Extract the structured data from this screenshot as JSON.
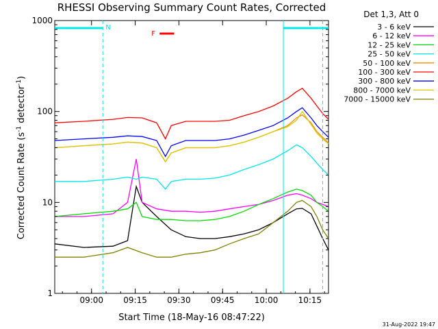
{
  "chart_data": {
    "type": "line",
    "title": "RHESSI Observing Summary Count Rates, Corrected",
    "xlabel": "Start Time (18-May-16 08:47:22)",
    "ylabel_prefix": "Corrected Count Rate (s",
    "ylabel_sup": "-1",
    "ylabel_mid": " detector",
    "ylabel_sup2": "-1",
    "ylabel_suffix": ")",
    "yscale": "log",
    "ylim": [
      1,
      1000
    ],
    "xlim_minutes": [
      0,
      94
    ],
    "x_ticks": [
      {
        "label": "09:00",
        "minutes": 12.63
      },
      {
        "label": "09:15",
        "minutes": 27.63
      },
      {
        "label": "09:30",
        "minutes": 42.63
      },
      {
        "label": "09:45",
        "minutes": 57.63
      },
      {
        "label": "10:00",
        "minutes": 72.63
      },
      {
        "label": "10:15",
        "minutes": 87.63
      }
    ],
    "y_ticks": [
      {
        "label": "1",
        "value": 1
      },
      {
        "label": "10",
        "value": 10
      },
      {
        "label": "100",
        "value": 100
      },
      {
        "label": "1000",
        "value": 1000
      }
    ],
    "legend_header": "Det 1,3, Att 0",
    "series": [
      {
        "name": "3 - 6 keV",
        "color": "#000000",
        "x": [
          0,
          10,
          20,
          25,
          28,
          30,
          35,
          40,
          45,
          50,
          55,
          60,
          65,
          70,
          75,
          80,
          83,
          85,
          88,
          90,
          92,
          94
        ],
        "y": [
          3.5,
          3.2,
          3.3,
          3.8,
          15,
          10,
          7,
          5,
          4.2,
          4.0,
          4.0,
          4.2,
          4.5,
          5,
          6,
          7.5,
          8.5,
          8.6,
          7.5,
          5.5,
          4.0,
          3.0
        ]
      },
      {
        "name": "6 - 12 keV",
        "color": "#ff00ff",
        "x": [
          0,
          10,
          20,
          25,
          28,
          30,
          35,
          40,
          45,
          50,
          55,
          60,
          65,
          70,
          75,
          80,
          83,
          85,
          88,
          90,
          92,
          94
        ],
        "y": [
          7,
          7,
          7.5,
          10,
          30,
          10,
          8.5,
          8,
          8,
          7.8,
          8,
          8.5,
          9,
          9.5,
          10.5,
          12,
          12.5,
          12,
          11,
          10,
          9.5,
          9
        ]
      },
      {
        "name": "12 - 25 keV",
        "color": "#00dd00",
        "x": [
          0,
          10,
          20,
          25,
          28,
          30,
          35,
          40,
          45,
          50,
          55,
          60,
          65,
          70,
          75,
          80,
          83,
          85,
          88,
          90,
          92,
          94
        ],
        "y": [
          7,
          7.5,
          8,
          8.5,
          10,
          7,
          6.5,
          6.5,
          6.3,
          6.3,
          6.5,
          7,
          8,
          9.5,
          11,
          13,
          14,
          13.5,
          12,
          10,
          9,
          8
        ]
      },
      {
        "name": "25 - 50 keV",
        "color": "#00e8e8",
        "x": [
          0,
          10,
          20,
          25,
          28,
          30,
          35,
          38,
          40,
          45,
          50,
          55,
          60,
          65,
          70,
          75,
          80,
          83,
          85,
          88,
          90,
          92,
          94
        ],
        "y": [
          17,
          17,
          18,
          19,
          18,
          19,
          18,
          14,
          17,
          18,
          18,
          18.5,
          20,
          23,
          26,
          30,
          37,
          43,
          40,
          32,
          27,
          23,
          20
        ]
      },
      {
        "name": "50 - 100 keV",
        "color": "#ff8800",
        "x": [
          0,
          10,
          20,
          25,
          30,
          35,
          38,
          40,
          45,
          50,
          55,
          60,
          65,
          70,
          75,
          80,
          83,
          85,
          88,
          90,
          92,
          94
        ],
        "y": [
          40,
          42,
          44,
          46,
          45,
          40,
          28,
          35,
          40,
          40,
          40,
          42,
          46,
          52,
          60,
          70,
          85,
          92,
          75,
          60,
          52,
          45
        ]
      },
      {
        "name": "100 - 300 keV",
        "color": "#ff0000",
        "x": [
          0,
          10,
          20,
          25,
          30,
          35,
          38,
          40,
          45,
          50,
          55,
          60,
          65,
          70,
          75,
          80,
          83,
          85,
          88,
          90,
          92,
          94
        ],
        "y": [
          75,
          78,
          82,
          86,
          85,
          75,
          50,
          70,
          78,
          78,
          78,
          80,
          90,
          100,
          115,
          140,
          165,
          180,
          140,
          115,
          95,
          82
        ]
      },
      {
        "name": "300 - 800 keV",
        "color": "#0000ff",
        "x": [
          0,
          10,
          20,
          25,
          30,
          35,
          38,
          40,
          45,
          50,
          55,
          60,
          65,
          70,
          75,
          80,
          83,
          85,
          88,
          90,
          92,
          94
        ],
        "y": [
          48,
          50,
          52,
          54,
          53,
          48,
          32,
          42,
          48,
          48,
          48,
          50,
          55,
          62,
          70,
          85,
          100,
          110,
          85,
          70,
          60,
          52
        ]
      },
      {
        "name": "800 - 7000 keV",
        "color": "#ddc800",
        "x": [
          0,
          10,
          20,
          25,
          30,
          35,
          38,
          40,
          45,
          50,
          55,
          60,
          65,
          70,
          75,
          80,
          83,
          85,
          88,
          90,
          92,
          94
        ],
        "y": [
          40,
          42,
          44,
          46,
          45,
          40,
          28,
          35,
          40,
          40,
          40,
          42,
          46,
          52,
          60,
          68,
          80,
          100,
          72,
          58,
          50,
          44
        ]
      },
      {
        "name": "7000 - 15000 keV",
        "color": "#808000",
        "x": [
          0,
          10,
          20,
          25,
          30,
          35,
          40,
          45,
          50,
          55,
          60,
          65,
          70,
          75,
          80,
          83,
          85,
          88,
          90,
          92,
          94
        ],
        "y": [
          2.5,
          2.5,
          2.8,
          3.2,
          2.8,
          2.5,
          2.5,
          2.7,
          2.8,
          3.0,
          3.5,
          4.0,
          4.5,
          6,
          8,
          10,
          10.5,
          9,
          7,
          5,
          4
        ]
      }
    ],
    "annotations": {
      "n_label": "N",
      "f_label": "F",
      "night_intervals_minutes": [
        [
          0,
          16.5
        ],
        [
          78.5,
          94
        ]
      ],
      "flare_interval_minutes": [
        36,
        41
      ],
      "dashed_lines_minutes": [
        16.5,
        92
      ],
      "solid_lines_minutes": [
        78.5
      ],
      "night_color": "#00e8e8",
      "flare_color": "#ff0000"
    },
    "grid": false,
    "legend_position": "right"
  },
  "footer_date": "31-Aug-2022 19:47"
}
